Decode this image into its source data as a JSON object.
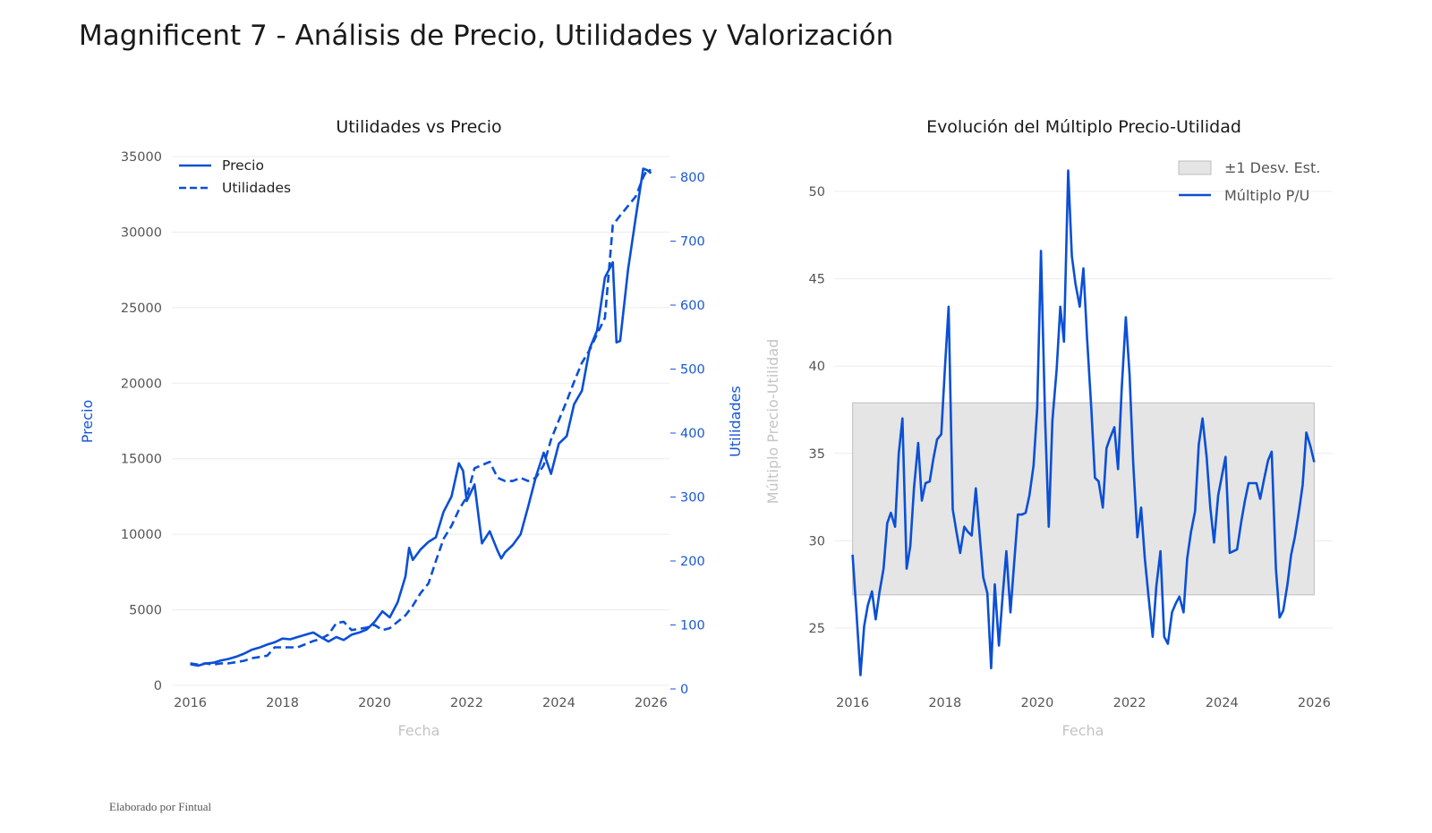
{
  "title": "Magnificent 7 - Análisis de Precio, Utilidades y Valorización",
  "footer": "Elaborado por Fintual",
  "colors": {
    "line": "#0a4fd6",
    "band": "#e5e5e5",
    "band_stroke": "#bdbdbd"
  },
  "chart_data": [
    {
      "type": "line",
      "title": "Utilidades vs Precio",
      "xlabel": "Fecha",
      "ylabel": "Precio",
      "y2label": "Utilidades",
      "xlim": [
        2015.6,
        2026.4
      ],
      "ylim": [
        0,
        35000
      ],
      "y2lim": [
        0,
        800
      ],
      "x_ticks": [
        2016,
        2018,
        2020,
        2022,
        2024,
        2026
      ],
      "y_ticks": [
        0,
        5000,
        10000,
        15000,
        20000,
        25000,
        30000,
        35000
      ],
      "y2_ticks": [
        0,
        100,
        200,
        300,
        400,
        500,
        600,
        700,
        800
      ],
      "legend": [
        "Precio",
        "Utilidades"
      ],
      "series": [
        {
          "name": "Precio",
          "style": "solid",
          "axis": "y",
          "x": [
            2016.0,
            2016.17,
            2016.33,
            2016.5,
            2016.67,
            2016.83,
            2017.0,
            2017.17,
            2017.33,
            2017.5,
            2017.67,
            2017.83,
            2018.0,
            2018.17,
            2018.33,
            2018.5,
            2018.67,
            2018.83,
            2019.0,
            2019.17,
            2019.33,
            2019.5,
            2019.67,
            2019.83,
            2020.0,
            2020.17,
            2020.33,
            2020.5,
            2020.67,
            2020.75,
            2020.83,
            2021.0,
            2021.17,
            2021.33,
            2021.42,
            2021.5,
            2021.67,
            2021.83,
            2021.92,
            2022.0,
            2022.17,
            2022.33,
            2022.5,
            2022.67,
            2022.75,
            2022.83,
            2023.0,
            2023.17,
            2023.33,
            2023.5,
            2023.67,
            2023.83,
            2024.0,
            2024.17,
            2024.33,
            2024.5,
            2024.67,
            2024.83,
            2025.0,
            2025.17,
            2025.25,
            2025.33,
            2025.5,
            2025.67,
            2025.83,
            2025.92,
            2026.0
          ],
          "values": [
            1400,
            1300,
            1450,
            1500,
            1650,
            1750,
            1900,
            2100,
            2350,
            2500,
            2700,
            2850,
            3100,
            3050,
            3200,
            3350,
            3500,
            3200,
            2900,
            3200,
            3000,
            3350,
            3500,
            3700,
            4200,
            4900,
            4500,
            5500,
            7200,
            9100,
            8300,
            9000,
            9500,
            9800,
            10700,
            11500,
            12500,
            14700,
            14200,
            12200,
            13300,
            9400,
            10200,
            8900,
            8400,
            8800,
            9300,
            10000,
            11800,
            13800,
            15400,
            14000,
            16000,
            16500,
            18600,
            19500,
            22300,
            23500,
            27000,
            28000,
            22700,
            22800,
            27500,
            31000,
            34200,
            34100,
            33900
          ]
        },
        {
          "name": "Utilidades",
          "style": "dashed",
          "axis": "y2",
          "x": [
            2016.0,
            2016.17,
            2016.33,
            2016.5,
            2016.67,
            2016.83,
            2017.0,
            2017.17,
            2017.33,
            2017.5,
            2017.67,
            2017.83,
            2018.0,
            2018.17,
            2018.33,
            2018.5,
            2018.67,
            2018.83,
            2019.0,
            2019.17,
            2019.33,
            2019.5,
            2019.67,
            2019.83,
            2020.0,
            2020.17,
            2020.33,
            2020.5,
            2020.67,
            2020.83,
            2021.0,
            2021.17,
            2021.33,
            2021.5,
            2021.67,
            2021.83,
            2022.0,
            2022.17,
            2022.33,
            2022.5,
            2022.67,
            2022.83,
            2023.0,
            2023.17,
            2023.33,
            2023.5,
            2023.67,
            2023.83,
            2024.0,
            2024.17,
            2024.33,
            2024.5,
            2024.67,
            2024.83,
            2025.0,
            2025.17,
            2025.33,
            2025.5,
            2025.67,
            2025.83,
            2025.92,
            2026.0
          ],
          "values": [
            40,
            38,
            40,
            38,
            40,
            40,
            42,
            44,
            48,
            50,
            52,
            65,
            65,
            65,
            65,
            70,
            75,
            78,
            85,
            103,
            105,
            92,
            94,
            96,
            100,
            92,
            95,
            105,
            115,
            130,
            150,
            165,
            200,
            235,
            255,
            280,
            300,
            345,
            350,
            355,
            330,
            325,
            325,
            330,
            325,
            330,
            350,
            390,
            420,
            450,
            480,
            510,
            530,
            555,
            580,
            725,
            740,
            755,
            770,
            800,
            812,
            810
          ]
        }
      ]
    },
    {
      "type": "line",
      "title": "Evolución del Múltiplo Precio-Utilidad",
      "xlabel": "Fecha",
      "ylabel": "Múltiplo Precio-Utilidad",
      "xlim": [
        2015.6,
        2026.4
      ],
      "ylim": [
        21,
        52
      ],
      "x_ticks": [
        2016,
        2018,
        2020,
        2022,
        2024,
        2026
      ],
      "y_ticks": [
        25,
        30,
        35,
        40,
        45,
        50
      ],
      "band": {
        "label": "±1 Desv. Est.",
        "low": 26.9,
        "high": 37.9,
        "x0": 2016.0,
        "x1": 2026.0
      },
      "legend": [
        "±1 Desv. Est.",
        "Múltiplo P/U"
      ],
      "series": [
        {
          "name": "Múltiplo P/U",
          "x": [
            2016.0,
            2016.08,
            2016.17,
            2016.25,
            2016.33,
            2016.42,
            2016.5,
            2016.58,
            2016.67,
            2016.75,
            2016.83,
            2016.92,
            2017.0,
            2017.08,
            2017.17,
            2017.25,
            2017.33,
            2017.42,
            2017.5,
            2017.58,
            2017.67,
            2017.75,
            2017.83,
            2017.92,
            2018.0,
            2018.08,
            2018.17,
            2018.25,
            2018.33,
            2018.42,
            2018.5,
            2018.58,
            2018.67,
            2018.75,
            2018.83,
            2018.92,
            2019.0,
            2019.08,
            2019.17,
            2019.25,
            2019.33,
            2019.42,
            2019.5,
            2019.58,
            2019.67,
            2019.75,
            2019.83,
            2019.92,
            2020.0,
            2020.08,
            2020.17,
            2020.25,
            2020.33,
            2020.42,
            2020.5,
            2020.58,
            2020.67,
            2020.75,
            2020.83,
            2020.92,
            2021.0,
            2021.08,
            2021.17,
            2021.25,
            2021.33,
            2021.42,
            2021.5,
            2021.58,
            2021.67,
            2021.75,
            2021.83,
            2021.92,
            2022.0,
            2022.08,
            2022.17,
            2022.25,
            2022.33,
            2022.42,
            2022.5,
            2022.58,
            2022.67,
            2022.75,
            2022.83,
            2022.92,
            2023.0,
            2023.08,
            2023.17,
            2023.25,
            2023.33,
            2023.42,
            2023.5,
            2023.58,
            2023.67,
            2023.75,
            2023.83,
            2023.92,
            2024.0,
            2024.08,
            2024.17,
            2024.25,
            2024.33,
            2024.42,
            2024.5,
            2024.58,
            2024.67,
            2024.75,
            2024.83,
            2024.92,
            2025.0,
            2025.08,
            2025.17,
            2025.25,
            2025.33,
            2025.42,
            2025.5,
            2025.58,
            2025.67,
            2025.75,
            2025.83,
            2025.92,
            2026.0
          ],
          "values": [
            29.2,
            26.0,
            22.3,
            25.1,
            26.3,
            27.1,
            25.5,
            27.0,
            28.4,
            31.0,
            31.6,
            30.8,
            35.0,
            37.0,
            28.4,
            29.7,
            33.0,
            35.6,
            32.3,
            33.3,
            33.4,
            34.7,
            35.8,
            36.1,
            39.9,
            43.4,
            31.8,
            30.5,
            29.3,
            30.8,
            30.5,
            30.3,
            33.0,
            30.4,
            27.9,
            27.0,
            22.7,
            27.5,
            24.0,
            26.8,
            29.4,
            25.9,
            28.7,
            31.5,
            31.5,
            31.6,
            32.6,
            34.3,
            37.6,
            46.6,
            37.0,
            30.8,
            36.9,
            39.8,
            43.4,
            41.4,
            51.2,
            46.3,
            44.7,
            43.4,
            45.6,
            41.6,
            37.6,
            33.6,
            33.4,
            31.9,
            35.3,
            35.9,
            36.5,
            34.1,
            38.7,
            42.8,
            39.5,
            34.4,
            30.2,
            31.9,
            29.0,
            26.6,
            24.5,
            27.4,
            29.4,
            24.5,
            24.1,
            25.9,
            26.4,
            26.8,
            25.9,
            29.0,
            30.5,
            31.7,
            35.5,
            37.0,
            34.8,
            31.9,
            29.9,
            32.6,
            33.7,
            34.8,
            29.3,
            29.4,
            29.5,
            31.1,
            32.3,
            33.3,
            33.3,
            33.3,
            32.4,
            33.6,
            34.6,
            35.1,
            28.4,
            25.6,
            26.0,
            27.5,
            29.2,
            30.2,
            31.7,
            33.2,
            36.2,
            35.4,
            34.5
          ]
        }
      ]
    }
  ]
}
